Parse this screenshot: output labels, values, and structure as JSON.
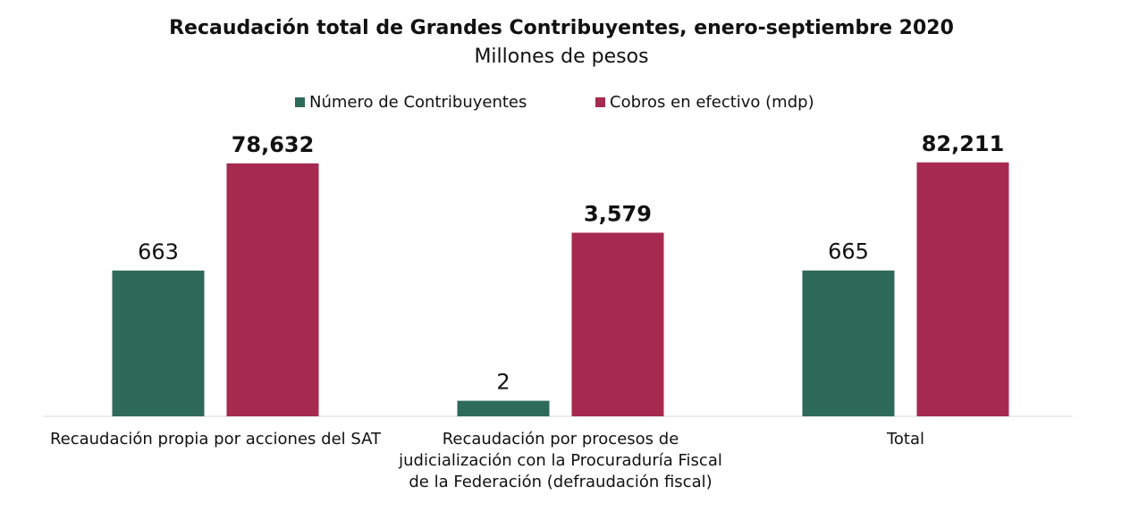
{
  "chart_data": {
    "type": "bar",
    "title": "Recaudación total de Grandes Contribuyentes, enero-septiembre 2020",
    "subtitle": "Millones de pesos",
    "categories": [
      "Recaudación propia por acciones del SAT",
      "Recaudación por procesos de judicialización con la Procuraduría Fiscal de la Federación (defraudación fiscal)",
      "Total"
    ],
    "series": [
      {
        "name": "Número de Contribuyentes",
        "color": "#2d6a58",
        "values": [
          663,
          2,
          665
        ]
      },
      {
        "name": "Cobros en efectivo (mdp)",
        "color": "#a62a4f",
        "values": [
          78632,
          3579,
          82211
        ],
        "value_labels": [
          "78,632",
          "3,579",
          "82,211"
        ]
      }
    ],
    "log_scale": true,
    "ylim": [
      1,
      1000000
    ],
    "legend": "top"
  }
}
